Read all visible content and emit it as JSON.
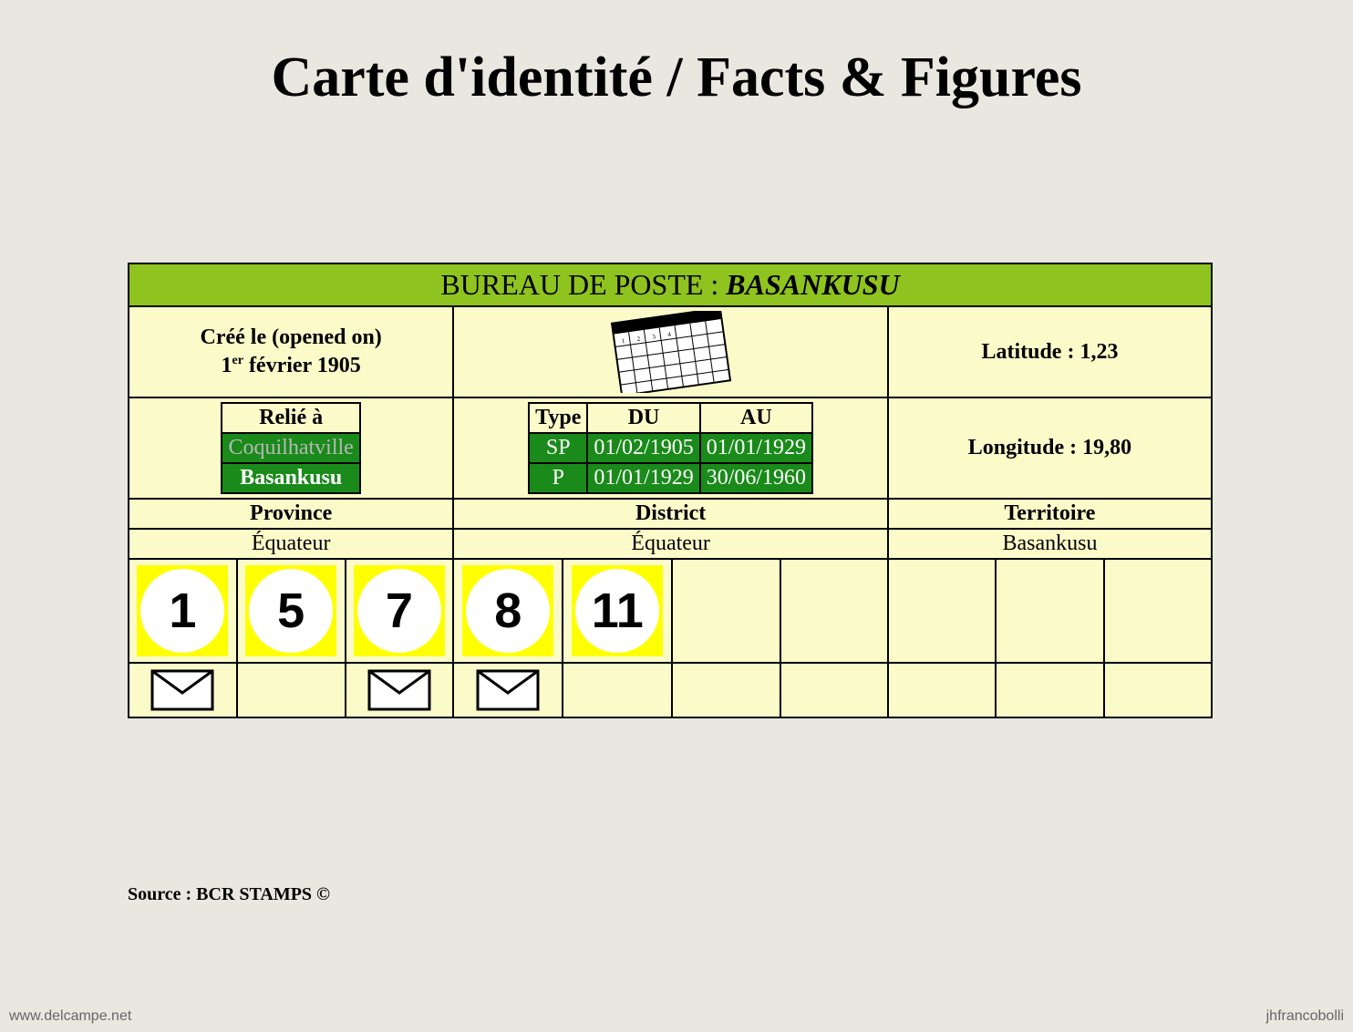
{
  "title": "Carte d'identité / Facts & Figures",
  "header": {
    "prefix": "BUREAU DE POSTE : ",
    "name": "BASANKUSU"
  },
  "created": {
    "label": "Créé le (opened on)",
    "date_prefix": "1",
    "date_sup": "er",
    "date_rest": " février 1905"
  },
  "latitude": {
    "label": "Latitude : ",
    "value": "1,23"
  },
  "longitude": {
    "label": "Longitude : ",
    "value": "19,80"
  },
  "relie": {
    "header": "Relié à",
    "rows": [
      {
        "text": "Coquilhatville",
        "dim": true
      },
      {
        "text": "Basankusu",
        "dim": false
      }
    ]
  },
  "type_table": {
    "headers": [
      "Type",
      "DU",
      "AU"
    ],
    "rows": [
      [
        "SP",
        "01/02/1905",
        "01/01/1929"
      ],
      [
        "P",
        "01/01/1929",
        "30/06/1960"
      ]
    ]
  },
  "admin": {
    "labels": [
      "Province",
      "District",
      "Territoire"
    ],
    "values": [
      "Équateur",
      "Équateur",
      "Basankusu"
    ]
  },
  "numbers": [
    "1",
    "5",
    "7",
    "8",
    "11",
    "",
    "",
    "",
    "",
    ""
  ],
  "envelopes": [
    true,
    false,
    true,
    true,
    false,
    false,
    false,
    false,
    false,
    false
  ],
  "source": "Source : BCR STAMPS ©",
  "watermark_left": "www.delcampe.net",
  "watermark_right": "jhfrancobolli",
  "colors": {
    "bg": "#e8e8e0",
    "card_bg": "#fbfbca",
    "header_green": "#8fc31f",
    "cell_green": "#1a8a1a",
    "yellow": "#ffff00",
    "border": "#000000"
  }
}
